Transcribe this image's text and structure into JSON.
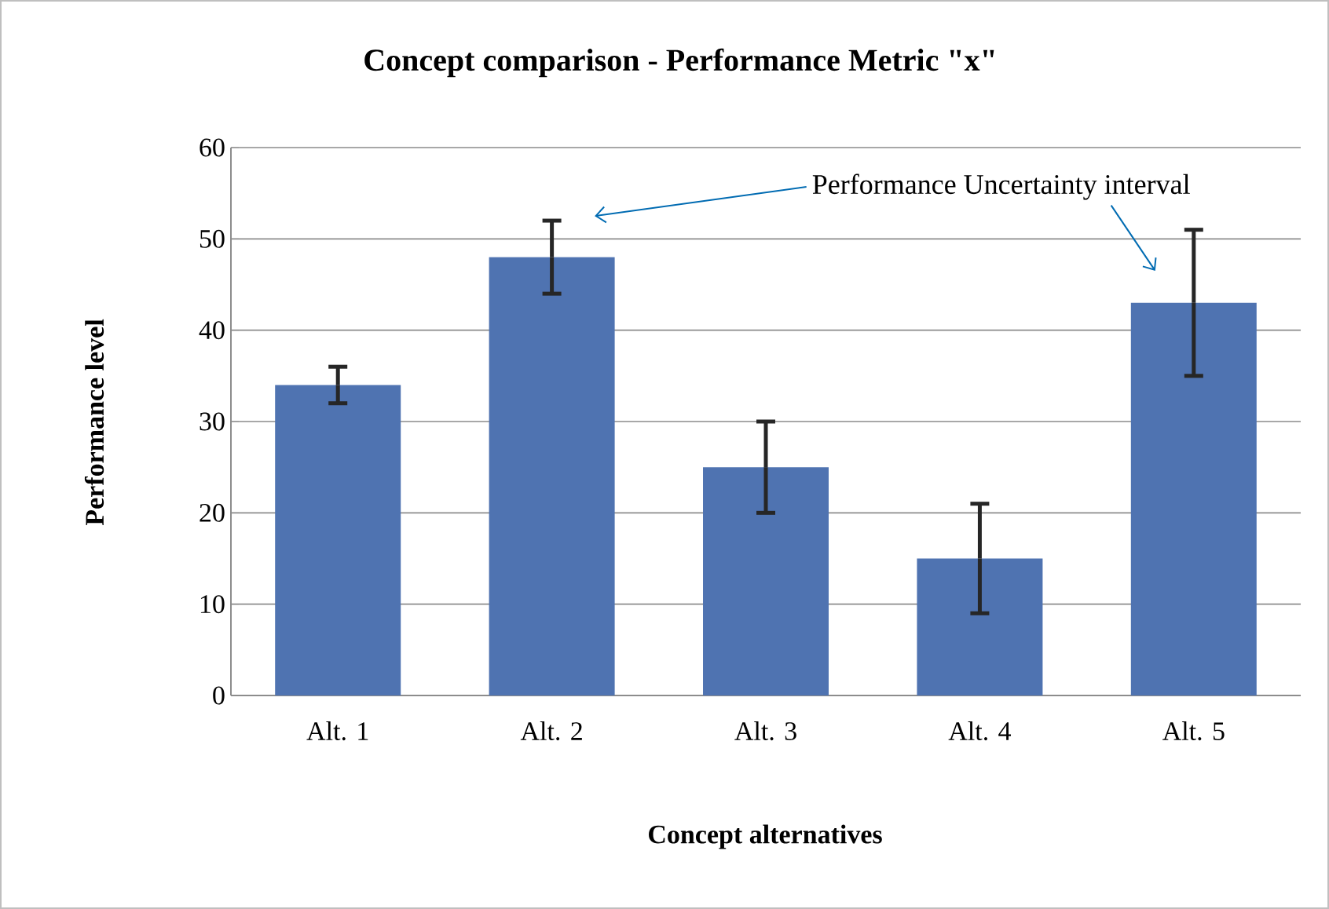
{
  "chart_data": {
    "type": "bar",
    "title": "Concept comparison -  Performance Metric \"x\"",
    "xlabel": "Concept alternatives",
    "ylabel": "Performance level",
    "categories": [
      "Alt. 1",
      "Alt. 2",
      "Alt. 3",
      "Alt. 4",
      "Alt. 5"
    ],
    "values": [
      34,
      48,
      25,
      15,
      43
    ],
    "errors": [
      [
        32,
        36
      ],
      [
        44,
        52
      ],
      [
        20,
        30
      ],
      [
        9,
        21
      ],
      [
        35,
        51
      ]
    ],
    "color": "#4f73b1",
    "ylim": [
      0,
      60
    ],
    "yticks": [
      0,
      10,
      20,
      30,
      40,
      50,
      60
    ],
    "grid": "y",
    "annotations": [
      "Performance Uncertainty interval"
    ]
  }
}
